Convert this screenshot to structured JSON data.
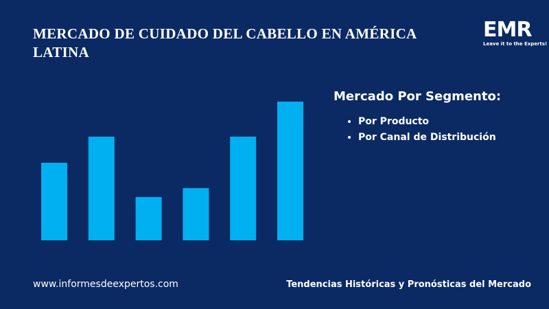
{
  "chart_data": {
    "type": "bar",
    "title": "MERCADO DE CUIDADO DEL CABELLO EN AMÉRICA LATINA",
    "categories": [
      null,
      null,
      null,
      null,
      null,
      null
    ],
    "values": [
      113,
      151,
      63,
      76,
      151,
      202
    ],
    "color": "#00b0f0"
  },
  "logo": {
    "name": "EMR",
    "tagline": "Leave it to the Experts!"
  },
  "panel": {
    "heading": "Mercado Por Segmento:",
    "items": [
      "Por Producto",
      "Por Canal de Distribución"
    ]
  },
  "footer": {
    "website": "www.informesdeexpertos.com",
    "caption": "Tendencias Históricas y Pronósticas del Mercado"
  }
}
